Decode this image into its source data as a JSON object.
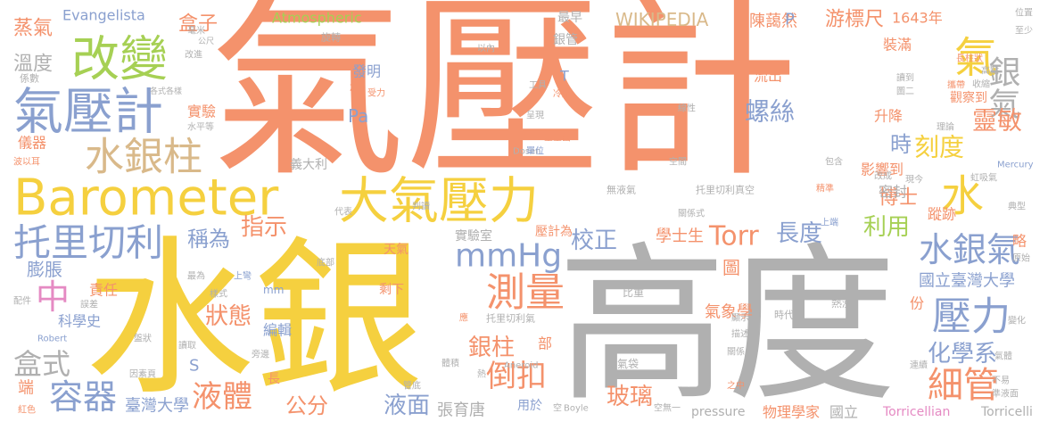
{
  "words": [
    "氣壓計",
    "高度",
    "水銀",
    "Barometer",
    "氣壓計",
    "改變",
    "大氣壓力",
    "水銀柱",
    "托里切利",
    "氣",
    "銀氣",
    "水",
    "測量",
    "mmHg",
    "壓力",
    "水銀氣",
    "細管",
    "容器",
    "倒扣",
    "液體",
    "中",
    "盒式",
    "螺絲",
    "時",
    "刻度",
    "靈敏",
    "化學系",
    "長度",
    "利用",
    "Torr",
    "校正",
    "玻璃",
    "液面",
    "銀柱",
    "稱為",
    "指示",
    "狀態",
    "博士",
    "蒸氣",
    "溫度",
    "盒子",
    "游標尺",
    "WIKIPEDIA",
    "陳藹然",
    "1643年",
    "Atmospheric",
    "Evangelista",
    "公分",
    "臺灣大學",
    "張育唐",
    "國立臺灣大學",
    "學士生",
    "膨脹",
    "Pa",
    "Torricellian",
    "Torricelli",
    "pressure",
    "物理學家",
    "國立",
    "氣象學",
    "圖",
    "發明",
    "實驗",
    "儀器",
    "責任",
    "科學史",
    "端",
    "壓計為",
    "實驗室",
    "天氣",
    "剩下",
    "最早",
    "銀管",
    "升降",
    "影響到",
    "密封",
    "裝滿",
    "流出",
    "觀察到",
    "編輯",
    "用於",
    "蹤跡",
    "份",
    "S",
    "P",
    "T",
    "義大利",
    "部",
    "略",
    "長",
    "Robert",
    "Boyle",
    "Aneroid",
    "Dosen",
    "Mercury",
    "mm",
    "透氣袋",
    "無液氣",
    "托里切利真空",
    "托里切利氣",
    "比重",
    "熱漲",
    "時代",
    "紅色",
    "典型",
    "虹吸氣",
    "原始",
    "變化",
    "位置",
    "至少",
    "高點",
    "收縮",
    "理論",
    "精準",
    "上端",
    "代表",
    "判讀",
    "係數",
    "改進",
    "旋轉",
    "以內",
    "單位",
    "空間",
    "線性",
    "工具",
    "冷縮",
    "呈現",
    "包含",
    "改成",
    "現今",
    "水平等",
    "波以耳",
    "配件",
    "誤差",
    "盤狀",
    "因素頁",
    "底部",
    "最為",
    "樣式",
    "上彎",
    "讀取",
    "旁邊",
    "管底",
    "體積",
    "應",
    "熱",
    "空",
    "空無一",
    "攜帶",
    "長柱狀",
    "圖二",
    "讀到",
    "顯示",
    "描述",
    "關係",
    "之中",
    "連續",
    "不易",
    "準液面",
    "氣體",
    "關係式",
    "受力",
    "星星齒",
    "各式各樣",
    "柱",
    "毫米",
    "公尺"
  ]
}
